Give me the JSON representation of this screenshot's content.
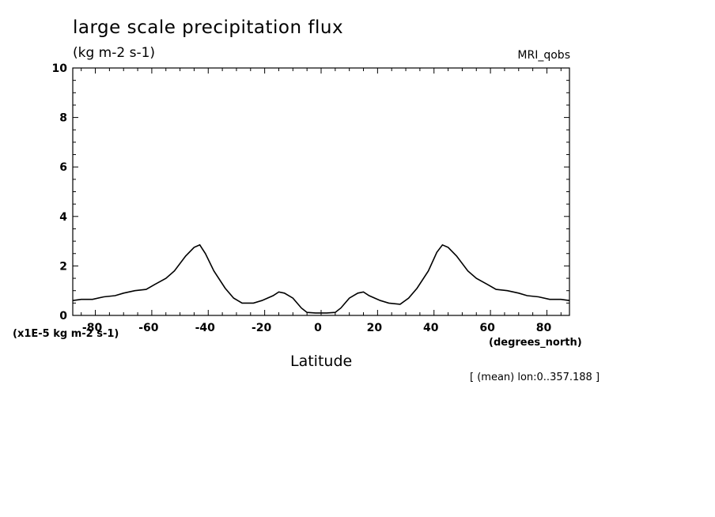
{
  "header": {
    "title": "large scale precipitation flux",
    "units": "(kg m-2 s-1)",
    "model": "MRI_qobs"
  },
  "axes": {
    "y_multiplier": "(x1E-5 kg m-2 s-1)",
    "x_units": "(degrees_north)",
    "x_label": "Latitude"
  },
  "footer": {
    "note": "[ (mean) lon:0..357.188 ]"
  },
  "chart_data": {
    "type": "line",
    "title": "large scale precipitation flux",
    "xlabel": "Latitude",
    "ylabel": "(kg m-2 s-1)",
    "xlim": [
      -88,
      88
    ],
    "ylim": [
      0,
      10
    ],
    "x_ticks": [
      -80,
      -60,
      -40,
      -20,
      0,
      20,
      40,
      60,
      80
    ],
    "x_tick_labels": [
      "-80",
      "-60",
      "-40",
      "-20",
      "0",
      "20",
      "40",
      "60",
      "80"
    ],
    "y_ticks": [
      0,
      2,
      4,
      6,
      8,
      10
    ],
    "y_tick_labels": [
      "0",
      "2",
      "4",
      "6",
      "8",
      "10"
    ],
    "grid": false,
    "line_color": "#000000",
    "series": [
      {
        "x": [
          -88,
          -85,
          -81,
          -77,
          -73,
          -70,
          -66,
          -62,
          -59,
          -55,
          -52,
          -48,
          -45,
          -43,
          -41,
          -38,
          -34,
          -31,
          -28,
          -24,
          -21,
          -17,
          -15,
          -13,
          -10,
          -7,
          -5,
          -2,
          0,
          2,
          5,
          7,
          10,
          13,
          15,
          17,
          21,
          24,
          28,
          31,
          34,
          38,
          41,
          43,
          45,
          48,
          52,
          55,
          59,
          62,
          66,
          70,
          73,
          77,
          81,
          85,
          88
        ],
        "y": [
          0.6,
          0.65,
          0.65,
          0.75,
          0.8,
          0.9,
          1.0,
          1.05,
          1.25,
          1.5,
          1.8,
          2.4,
          2.75,
          2.85,
          2.5,
          1.8,
          1.1,
          0.7,
          0.5,
          0.5,
          0.6,
          0.8,
          0.95,
          0.9,
          0.7,
          0.3,
          0.12,
          0.1,
          0.1,
          0.1,
          0.12,
          0.3,
          0.7,
          0.9,
          0.95,
          0.8,
          0.6,
          0.5,
          0.45,
          0.7,
          1.1,
          1.8,
          2.55,
          2.85,
          2.75,
          2.4,
          1.8,
          1.5,
          1.25,
          1.05,
          1.0,
          0.9,
          0.8,
          0.75,
          0.65,
          0.65,
          0.6
        ]
      }
    ]
  }
}
